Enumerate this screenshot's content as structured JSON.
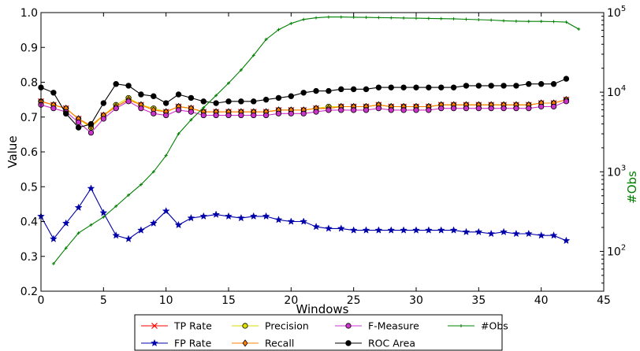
{
  "chart_data": {
    "type": "line",
    "xlabel": "Windows",
    "ylabel": "Value",
    "y2label": "#Obs",
    "xlim": [
      0,
      45
    ],
    "ylim": [
      0.2,
      1.0
    ],
    "y2lim_log10": [
      1.5,
      5.0
    ],
    "y2_scale": "log",
    "grid": false,
    "legend_position": "bottom-center",
    "x_ticks": [
      "0",
      "5",
      "10",
      "15",
      "20",
      "25",
      "30",
      "35",
      "40",
      "45"
    ],
    "y_ticks": [
      "0.2",
      "0.3",
      "0.4",
      "0.5",
      "0.6",
      "0.7",
      "0.8",
      "0.9",
      "1.0"
    ],
    "y2_ticks": [
      {
        "base": "10",
        "exp": "2",
        "v": 100
      },
      {
        "base": "10",
        "exp": "3",
        "v": 1000
      },
      {
        "base": "10",
        "exp": "4",
        "v": 10000
      },
      {
        "base": "10",
        "exp": "5",
        "v": 100000
      }
    ],
    "x": [
      0,
      1,
      2,
      3,
      4,
      5,
      6,
      7,
      8,
      9,
      10,
      11,
      12,
      13,
      14,
      15,
      16,
      17,
      18,
      19,
      20,
      21,
      22,
      23,
      24,
      25,
      26,
      27,
      28,
      29,
      30,
      31,
      32,
      33,
      34,
      35,
      36,
      37,
      38,
      39,
      40,
      41,
      42
    ],
    "series": [
      {
        "name": "TP Rate",
        "axis": "left",
        "color": "#ff0000",
        "marker": "x",
        "values": [
          0.745,
          0.735,
          0.725,
          0.695,
          0.675,
          0.705,
          0.73,
          0.75,
          0.735,
          0.72,
          0.715,
          0.73,
          0.725,
          0.715,
          0.715,
          0.715,
          0.715,
          0.715,
          0.715,
          0.72,
          0.72,
          0.72,
          0.725,
          0.725,
          0.73,
          0.73,
          0.73,
          0.735,
          0.73,
          0.73,
          0.73,
          0.73,
          0.735,
          0.735,
          0.735,
          0.735,
          0.735,
          0.735,
          0.735,
          0.735,
          0.74,
          0.74,
          0.75
        ]
      },
      {
        "name": "FP Rate",
        "axis": "left",
        "color": "#0000aa",
        "marker": "star",
        "values": [
          0.415,
          0.35,
          0.395,
          0.44,
          0.495,
          0.425,
          0.36,
          0.35,
          0.375,
          0.395,
          0.43,
          0.39,
          0.41,
          0.415,
          0.42,
          0.415,
          0.41,
          0.415,
          0.415,
          0.405,
          0.4,
          0.4,
          0.385,
          0.38,
          0.38,
          0.375,
          0.375,
          0.375,
          0.375,
          0.375,
          0.375,
          0.375,
          0.375,
          0.375,
          0.37,
          0.37,
          0.365,
          0.37,
          0.365,
          0.365,
          0.36,
          0.36,
          0.345
        ]
      },
      {
        "name": "Precision",
        "axis": "left",
        "color": "#dddd00",
        "marker": "circle",
        "values": [
          0.745,
          0.735,
          0.725,
          0.695,
          0.67,
          0.705,
          0.735,
          0.755,
          0.735,
          0.725,
          0.715,
          0.73,
          0.725,
          0.715,
          0.715,
          0.715,
          0.715,
          0.715,
          0.715,
          0.72,
          0.72,
          0.72,
          0.725,
          0.73,
          0.73,
          0.73,
          0.73,
          0.735,
          0.73,
          0.73,
          0.73,
          0.73,
          0.735,
          0.735,
          0.735,
          0.735,
          0.735,
          0.735,
          0.735,
          0.735,
          0.74,
          0.74,
          0.75
        ]
      },
      {
        "name": "Recall",
        "axis": "left",
        "color": "#ff8000",
        "marker": "diamond",
        "values": [
          0.745,
          0.735,
          0.725,
          0.695,
          0.675,
          0.705,
          0.73,
          0.75,
          0.735,
          0.72,
          0.715,
          0.73,
          0.725,
          0.715,
          0.715,
          0.715,
          0.715,
          0.715,
          0.715,
          0.72,
          0.72,
          0.72,
          0.725,
          0.725,
          0.73,
          0.73,
          0.73,
          0.735,
          0.73,
          0.73,
          0.73,
          0.73,
          0.735,
          0.735,
          0.735,
          0.735,
          0.735,
          0.735,
          0.735,
          0.735,
          0.74,
          0.74,
          0.75
        ]
      },
      {
        "name": "F-Measure",
        "axis": "left",
        "color": "#cc33cc",
        "marker": "circle",
        "values": [
          0.735,
          0.725,
          0.715,
          0.685,
          0.655,
          0.695,
          0.725,
          0.745,
          0.725,
          0.71,
          0.705,
          0.72,
          0.715,
          0.705,
          0.705,
          0.705,
          0.705,
          0.705,
          0.705,
          0.71,
          0.71,
          0.71,
          0.715,
          0.72,
          0.72,
          0.72,
          0.72,
          0.725,
          0.72,
          0.72,
          0.72,
          0.72,
          0.725,
          0.725,
          0.725,
          0.725,
          0.725,
          0.725,
          0.725,
          0.725,
          0.73,
          0.73,
          0.745
        ]
      },
      {
        "name": "ROC Area",
        "axis": "left",
        "color": "#000000",
        "marker": "dot",
        "values": [
          0.785,
          0.77,
          0.71,
          0.67,
          0.68,
          0.74,
          0.795,
          0.79,
          0.765,
          0.76,
          0.74,
          0.765,
          0.755,
          0.745,
          0.74,
          0.745,
          0.745,
          0.745,
          0.75,
          0.755,
          0.76,
          0.77,
          0.775,
          0.775,
          0.78,
          0.78,
          0.78,
          0.785,
          0.785,
          0.785,
          0.785,
          0.785,
          0.785,
          0.785,
          0.79,
          0.79,
          0.79,
          0.79,
          0.79,
          0.795,
          0.795,
          0.795,
          0.81
        ]
      },
      {
        "name": "#Obs",
        "axis": "right",
        "color": "#008000",
        "marker": "plus",
        "x": [
          1,
          2,
          3,
          4,
          5,
          6,
          7,
          8,
          9,
          10,
          11,
          12,
          13,
          14,
          15,
          16,
          17,
          18,
          19,
          20,
          21,
          22,
          23,
          24,
          25,
          26,
          27,
          28,
          29,
          30,
          31,
          32,
          33,
          34,
          35,
          36,
          37,
          38,
          39,
          40,
          41,
          42,
          43
        ],
        "values": [
          70,
          110,
          170,
          215,
          270,
          370,
          510,
          690,
          1000,
          1600,
          3000,
          4500,
          6400,
          9100,
          13000,
          19000,
          29000,
          46000,
          61000,
          73000,
          82000,
          86000,
          88000,
          88000,
          87500,
          87000,
          86500,
          86000,
          85500,
          85000,
          84500,
          84000,
          83500,
          82500,
          81500,
          80500,
          79000,
          78000,
          77500,
          77500,
          77000,
          76000,
          62000
        ]
      }
    ]
  }
}
